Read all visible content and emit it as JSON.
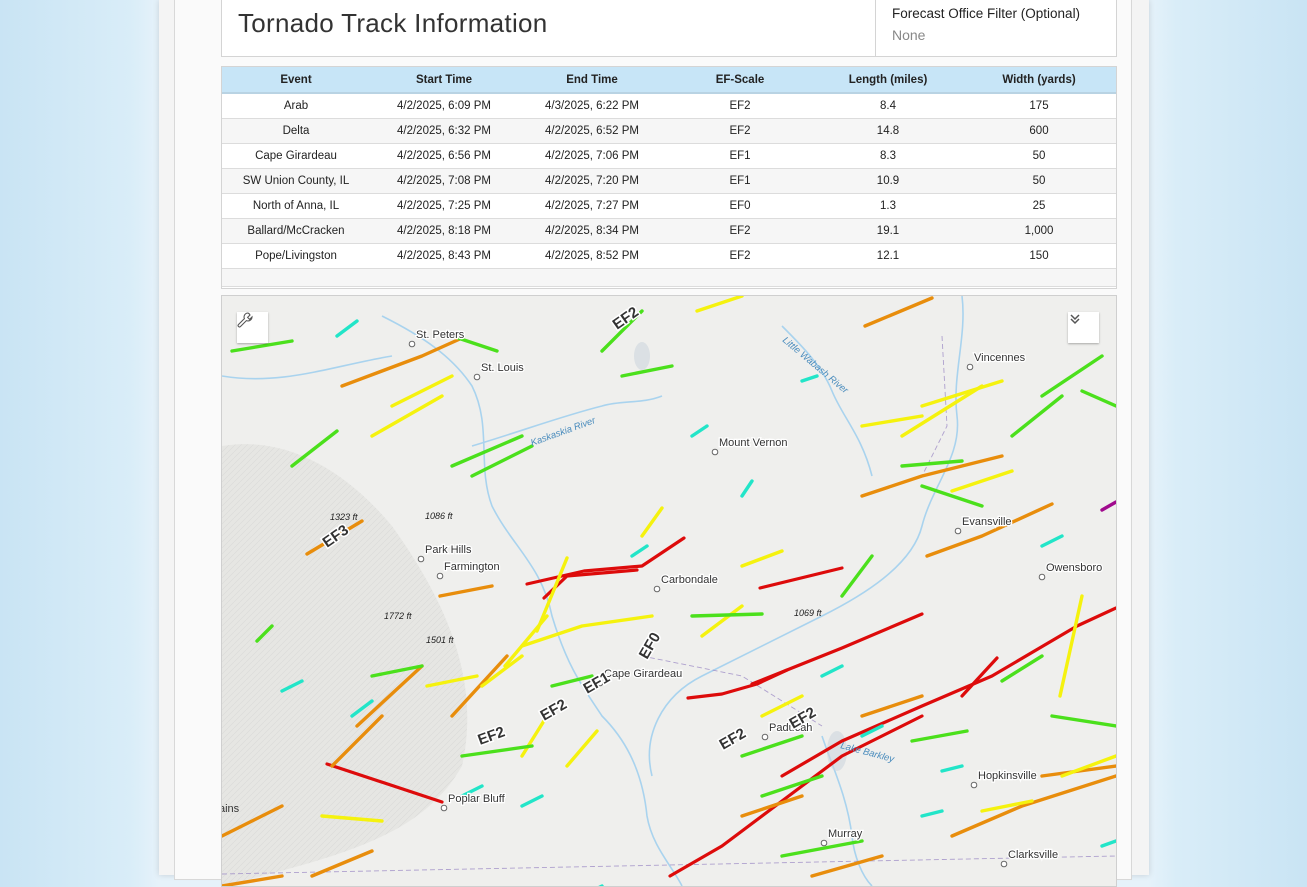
{
  "header": {
    "title": "Tornado Track Information",
    "filter_label": "Forecast Office Filter (Optional)",
    "filter_value": "None"
  },
  "table": {
    "columns": [
      "Event",
      "Start Time",
      "End Time",
      "EF-Scale",
      "Length (miles)",
      "Width (yards)"
    ],
    "rows": [
      [
        "Arab",
        "4/2/2025, 6:09 PM",
        "4/3/2025, 6:22 PM",
        "EF2",
        "8.4",
        "175"
      ],
      [
        "Delta",
        "4/2/2025, 6:32 PM",
        "4/2/2025, 6:52 PM",
        "EF2",
        "14.8",
        "600"
      ],
      [
        "Cape Girardeau",
        "4/2/2025, 6:56 PM",
        "4/2/2025, 7:06 PM",
        "EF1",
        "8.3",
        "50"
      ],
      [
        "SW Union County, IL",
        "4/2/2025, 7:08 PM",
        "4/2/2025, 7:20 PM",
        "EF1",
        "10.9",
        "50"
      ],
      [
        "North of Anna, IL",
        "4/2/2025, 7:25 PM",
        "4/2/2025, 7:27 PM",
        "EF0",
        "1.3",
        "25"
      ],
      [
        "Ballard/McCracken",
        "4/2/2025, 8:18 PM",
        "4/2/2025, 8:34 PM",
        "EF2",
        "19.1",
        "1,000"
      ],
      [
        "Pope/Livingston",
        "4/2/2025, 8:43 PM",
        "4/2/2025, 8:52 PM",
        "EF2",
        "12.1",
        "150"
      ]
    ]
  },
  "map": {
    "tool_icon": "wrench-icon",
    "collapse_icon": "double-chevron-down-icon",
    "cities": [
      {
        "name": "St. Peters"
      },
      {
        "name": "St. Louis"
      },
      {
        "name": "Mount Vernon"
      },
      {
        "name": "Vincennes"
      },
      {
        "name": "Evansville"
      },
      {
        "name": "Owensboro"
      },
      {
        "name": "Park Hills"
      },
      {
        "name": "Farmington"
      },
      {
        "name": "Carbondale"
      },
      {
        "name": "Cape Girardeau"
      },
      {
        "name": "Paducah"
      },
      {
        "name": "Poplar Bluff"
      },
      {
        "name": "Hopkinsville"
      },
      {
        "name": "Murray"
      },
      {
        "name": "Clarksville"
      }
    ],
    "water_labels": [
      "Kaskaskia River",
      "Little Wabash River",
      "Lake Barkley"
    ],
    "elevation_labels": [
      "1323 ft",
      "1086 ft",
      "1772 ft",
      "1501 ft",
      "1069 ft"
    ],
    "track_labels": [
      "EF2",
      "EF3",
      "EF0",
      "EF1",
      "EF2",
      "EF2",
      "EF2",
      "EF2"
    ],
    "edge_text": "ains",
    "ef_colors": {
      "EF0": "#22e5c8",
      "EF1": "#4be01c",
      "EF2": "#f5f20e",
      "EF3": "#e88d0c",
      "EF4": "#dd0b0b",
      "EF5": "#a10b8e"
    }
  }
}
